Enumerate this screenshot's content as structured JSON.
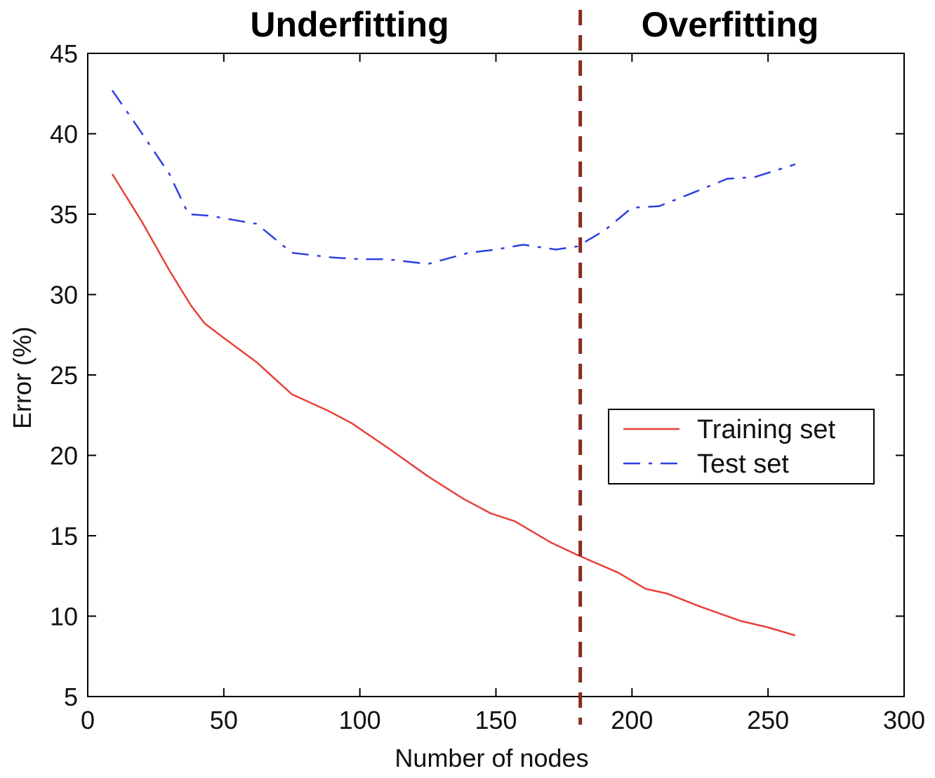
{
  "chart_data": {
    "type": "line",
    "title": "",
    "xlabel": "Number of nodes",
    "ylabel": "Error (%)",
    "xlim": [
      0,
      300
    ],
    "ylim": [
      5,
      45
    ],
    "xticks": [
      0,
      50,
      100,
      150,
      200,
      250,
      300
    ],
    "yticks": [
      5,
      10,
      15,
      20,
      25,
      30,
      35,
      40,
      45
    ],
    "grid": false,
    "legend_position": "center-right",
    "series": [
      {
        "name": "Training set",
        "color": "#e8413a",
        "style": "solid",
        "x": [
          9,
          20,
          30,
          38,
          43,
          50,
          62,
          75,
          88,
          97,
          110,
          125,
          138,
          148,
          157,
          170,
          180,
          195,
          205,
          213,
          225,
          240,
          250,
          260
        ],
        "y": [
          37.5,
          34.5,
          31.5,
          29.3,
          28.2,
          27.3,
          25.8,
          23.8,
          22.8,
          22.0,
          20.5,
          18.7,
          17.3,
          16.4,
          15.9,
          14.6,
          13.8,
          12.7,
          11.7,
          11.4,
          10.6,
          9.7,
          9.3,
          8.8
        ]
      },
      {
        "name": "Test set",
        "color": "#2e3fe0",
        "style": "dashdot",
        "x": [
          9,
          18,
          30,
          37,
          45,
          55,
          62,
          75,
          90,
          100,
          110,
          125,
          140,
          150,
          160,
          172,
          180,
          190,
          200,
          210,
          222,
          235,
          245,
          260
        ],
        "y": [
          42.7,
          40.5,
          37.5,
          35.0,
          34.9,
          34.6,
          34.4,
          32.6,
          32.3,
          32.2,
          32.2,
          31.9,
          32.6,
          32.8,
          33.1,
          32.8,
          33.0,
          34.0,
          35.4,
          35.5,
          36.3,
          37.2,
          37.3,
          38.1
        ]
      }
    ],
    "annotations": {
      "divider_x": 181,
      "divider_color": "#8b2a1e",
      "left_region_label": "Underfitting",
      "right_region_label": "Overfitting"
    }
  }
}
